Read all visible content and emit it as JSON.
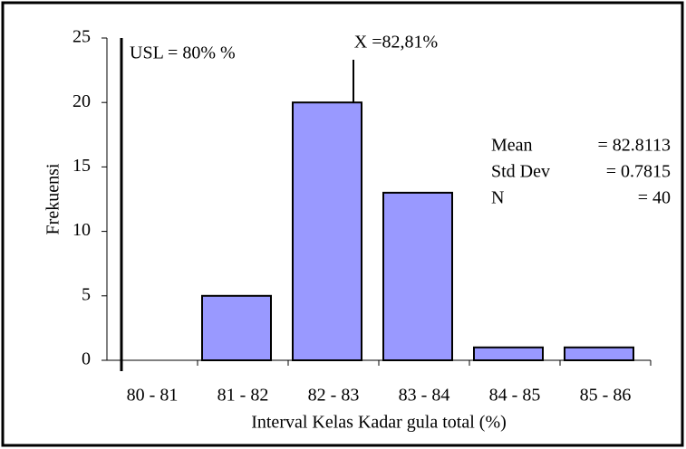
{
  "chart_data": {
    "type": "bar",
    "categories": [
      "80 - 81",
      "81 - 82",
      "82 - 83",
      "83 - 84",
      "84 - 85",
      "85 - 86"
    ],
    "values": [
      0,
      5,
      20,
      13,
      1,
      1
    ],
    "color": "#9999ff",
    "ylim": [
      0,
      25
    ],
    "yticks": [
      0,
      5,
      10,
      15,
      20,
      25
    ],
    "grid": false,
    "ylabel": "Frekuensi",
    "xlabel": "Interval Kelas Kadar gula total (%)",
    "annotations": [
      "USL = 80% %",
      "X =82,81%"
    ],
    "stats": [
      [
        "Mean",
        "= 82.8113"
      ],
      [
        "Std Dev",
        "= 0.7815"
      ],
      [
        "N",
        "=  40"
      ]
    ]
  }
}
